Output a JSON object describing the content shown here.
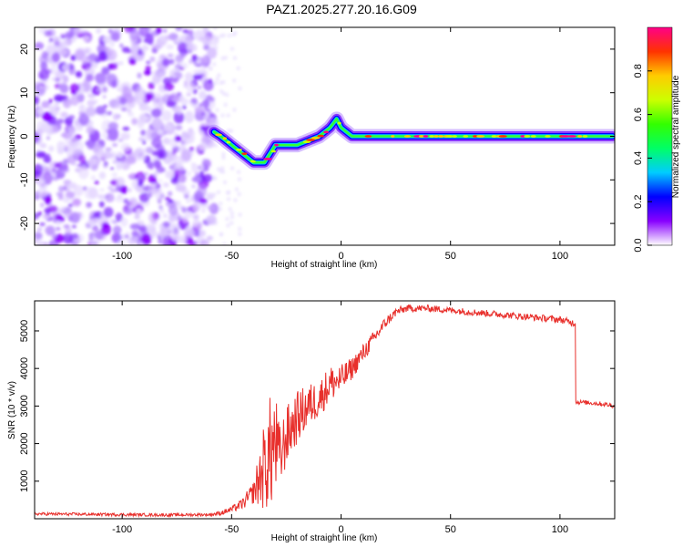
{
  "title": "PAZ1.2025.277.20.16.G09",
  "colors": {
    "snr_line": "#e8302c",
    "axes": "#000000",
    "background": "#ffffff"
  },
  "chart_data": [
    {
      "type": "heatmap",
      "name": "spectrogram",
      "xlabel": "Height of straight line (km)",
      "ylabel": "Frequency (Hz)",
      "xlim": [
        -140,
        125
      ],
      "ylim": [
        -25,
        25
      ],
      "xticks": [
        -100,
        -50,
        0,
        50,
        100
      ],
      "xtick_labels": [
        "-100",
        "-50",
        "0",
        "50",
        "100"
      ],
      "yticks": [
        -20,
        -10,
        0,
        10,
        20
      ],
      "ytick_labels": [
        "-20",
        "-10",
        "0",
        "10",
        "20"
      ],
      "ridge": {
        "x": [
          -58,
          -55,
          -50,
          -45,
          -40,
          -35,
          -30,
          -25,
          -20,
          -15,
          -10,
          -5,
          -2,
          0,
          5,
          10,
          20,
          30,
          40,
          50,
          60,
          70,
          80,
          90,
          100,
          110,
          118,
          124
        ],
        "y": [
          1,
          0,
          -2,
          -4,
          -6,
          -6,
          -2,
          -2,
          -2,
          -1,
          0,
          2,
          4,
          2,
          0,
          0,
          0,
          0,
          0,
          0,
          0,
          0,
          0,
          0,
          0,
          0,
          0,
          0
        ]
      },
      "noise_region": {
        "x_from": -140,
        "x_to": -58,
        "y_from": -25,
        "y_to": 25
      },
      "colorbar": {
        "label": "Normalized spectral amplitude",
        "range": [
          0.0,
          1.0
        ],
        "ticks": [
          0.0,
          0.2,
          0.4,
          0.6,
          0.8
        ],
        "tick_labels": [
          "0.0",
          "0.2",
          "0.4",
          "0.6",
          "0.8"
        ],
        "stops": [
          "#ffffff",
          "#8800ff",
          "#0000ff",
          "#00ccff",
          "#00ff66",
          "#33ff00",
          "#ccff00",
          "#ffcc00",
          "#ff3300",
          "#ff0088"
        ]
      }
    },
    {
      "type": "line",
      "name": "snr",
      "xlabel": "Height of straight line (km)",
      "ylabel": "SNR (10 * v/v)",
      "xlim": [
        -140,
        125
      ],
      "ylim": [
        0,
        5800
      ],
      "xticks": [
        -100,
        -50,
        0,
        50,
        100
      ],
      "xtick_labels": [
        "-100",
        "-50",
        "0",
        "50",
        "100"
      ],
      "yticks": [
        1000,
        2000,
        3000,
        4000,
        5000
      ],
      "ytick_labels": [
        "1000",
        "2000",
        "3000",
        "4000",
        "5000"
      ],
      "series": [
        {
          "name": "SNR",
          "x": [
            -140,
            -120,
            -100,
            -80,
            -60,
            -55,
            -50,
            -45,
            -40,
            -35,
            -32,
            -30,
            -28,
            -25,
            -20,
            -15,
            -10,
            -5,
            0,
            5,
            10,
            15,
            20,
            25,
            30,
            40,
            50,
            60,
            70,
            80,
            90,
            100,
            107,
            108,
            110,
            115,
            120,
            125
          ],
          "y": [
            130,
            120,
            110,
            100,
            110,
            150,
            250,
            400,
            700,
            1400,
            1800,
            2000,
            1600,
            2200,
            2700,
            3000,
            3200,
            3600,
            3700,
            4000,
            4400,
            4800,
            5200,
            5500,
            5600,
            5600,
            5550,
            5500,
            5450,
            5400,
            5350,
            5300,
            5200,
            3100,
            3100,
            3080,
            3050,
            3000
          ],
          "noise": [
            40,
            40,
            40,
            40,
            40,
            60,
            80,
            150,
            300,
            1200,
            1600,
            1400,
            900,
            800,
            700,
            600,
            500,
            500,
            400,
            300,
            250,
            200,
            150,
            120,
            100,
            90,
            90,
            90,
            90,
            90,
            90,
            90,
            90,
            60,
            60,
            60,
            60,
            60
          ]
        }
      ]
    }
  ]
}
